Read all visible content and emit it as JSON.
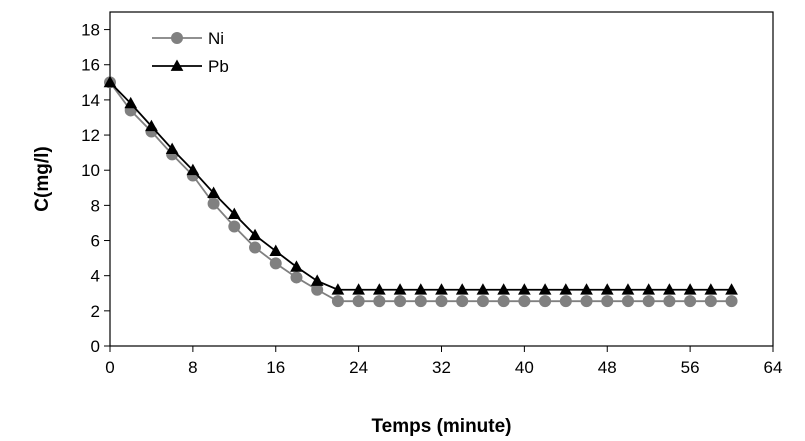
{
  "chart_data": {
    "type": "line",
    "xlabel": "Temps (minute)",
    "ylabel": "C(mg/l)",
    "xlim": [
      0,
      64
    ],
    "ylim": [
      0,
      19
    ],
    "x_ticks": [
      0,
      8,
      16,
      24,
      32,
      40,
      48,
      56,
      64
    ],
    "y_ticks": [
      0,
      2,
      4,
      6,
      8,
      10,
      12,
      14,
      16,
      18
    ],
    "grid": false,
    "legend_position": "top-left",
    "series": [
      {
        "name": "Ni",
        "color": "#808080",
        "marker": "circle",
        "x": [
          0,
          2,
          4,
          6,
          8,
          10,
          12,
          14,
          16,
          18,
          20,
          22,
          24,
          26,
          28,
          30,
          32,
          34,
          36,
          38,
          40,
          42,
          44,
          46,
          48,
          50,
          52,
          54,
          56,
          58,
          60
        ],
        "y": [
          15.0,
          13.4,
          12.2,
          10.9,
          9.7,
          8.1,
          6.8,
          5.6,
          4.7,
          3.9,
          3.2,
          2.55,
          2.55,
          2.55,
          2.55,
          2.55,
          2.55,
          2.55,
          2.55,
          2.55,
          2.55,
          2.55,
          2.55,
          2.55,
          2.55,
          2.55,
          2.55,
          2.55,
          2.55,
          2.55,
          2.55
        ]
      },
      {
        "name": "Pb",
        "color": "#000000",
        "marker": "triangle",
        "x": [
          0,
          2,
          4,
          6,
          8,
          10,
          12,
          14,
          16,
          18,
          20,
          22,
          24,
          26,
          28,
          30,
          32,
          34,
          36,
          38,
          40,
          42,
          44,
          46,
          48,
          50,
          52,
          54,
          56,
          58,
          60
        ],
        "y": [
          15.0,
          13.8,
          12.5,
          11.2,
          10.0,
          8.7,
          7.5,
          6.3,
          5.4,
          4.5,
          3.7,
          3.2,
          3.2,
          3.2,
          3.2,
          3.2,
          3.2,
          3.2,
          3.2,
          3.2,
          3.2,
          3.2,
          3.2,
          3.2,
          3.2,
          3.2,
          3.2,
          3.2,
          3.2,
          3.2,
          3.2
        ]
      }
    ]
  }
}
